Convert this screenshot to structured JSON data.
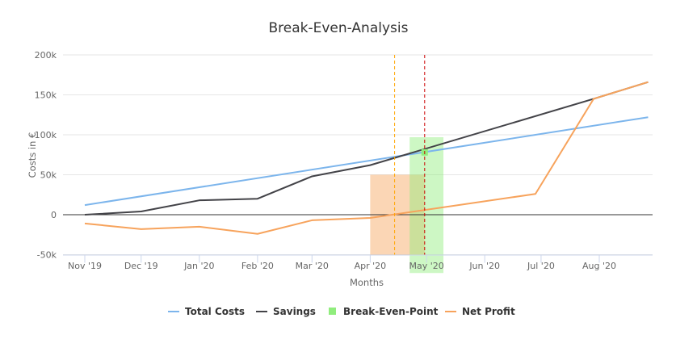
{
  "chart_data": {
    "type": "line",
    "title": "Break-Even-Analysis",
    "xlabel": "Months",
    "ylabel": "Costs in €",
    "x_ticks": [
      "Nov '19",
      "Dec '19",
      "Jan '20",
      "Feb '20",
      "Mar '20",
      "Apr '20",
      "May '20",
      "Jun '20",
      "Jul '20",
      "Aug '20"
    ],
    "x_tick_dates": [
      "2019-11-01",
      "2019-12-01",
      "2020-01-01",
      "2020-02-01",
      "2020-03-01",
      "2020-04-01",
      "2020-05-01",
      "2020-06-01",
      "2020-07-01",
      "2020-08-01"
    ],
    "xlim": [
      "2019-11-01",
      "2020-08-27"
    ],
    "y_ticks": [
      "-50k",
      "0",
      "50k",
      "100k",
      "150k",
      "200k"
    ],
    "y_tick_values": [
      -50000,
      0,
      50000,
      100000,
      150000,
      200000
    ],
    "ylim": [
      -50000,
      200000
    ],
    "grid": true,
    "legend_position": "bottom",
    "series": [
      {
        "name": "Total Costs",
        "color": "#7cb5ec",
        "points": [
          [
            "2019-11-01",
            12000
          ],
          [
            "2020-08-27",
            122000
          ]
        ]
      },
      {
        "name": "Savings",
        "color": "#434348",
        "points": [
          [
            "2019-11-01",
            0
          ],
          [
            "2019-12-01",
            4000
          ],
          [
            "2020-01-01",
            18000
          ],
          [
            "2020-02-01",
            20000
          ],
          [
            "2020-03-01",
            48000
          ],
          [
            "2020-04-01",
            62000
          ],
          [
            "2020-07-29",
            145000
          ],
          [
            "2020-08-27",
            166000
          ]
        ]
      },
      {
        "name": "Net Profit",
        "color": "#f7a35c",
        "points": [
          [
            "2019-11-01",
            -11000
          ],
          [
            "2019-12-01",
            -18000
          ],
          [
            "2020-01-01",
            -15000
          ],
          [
            "2020-02-01",
            -24000
          ],
          [
            "2020-03-01",
            -7000
          ],
          [
            "2020-04-01",
            -4000
          ],
          [
            "2020-06-28",
            26000
          ],
          [
            "2020-07-29",
            145000
          ],
          [
            "2020-08-27",
            166000
          ]
        ]
      }
    ],
    "break_even_point": {
      "name": "Break-Even-Point",
      "color": "#90ed7d",
      "date": "2020-04-30",
      "value": 78000
    },
    "zero_line_color": "#333333",
    "plot_bands": [
      {
        "from": "2020-04-01",
        "to": "2020-04-30",
        "y_from": -50000,
        "y_to": 50000,
        "color": "#f7a35c"
      },
      {
        "from": "2020-04-22",
        "to": "2020-05-10",
        "y_from": -73000,
        "y_to": 97000,
        "color": "#90ed7d"
      }
    ],
    "plot_lines": [
      {
        "date": "2020-04-14",
        "color": "#ffa500"
      },
      {
        "date": "2020-04-30",
        "color": "#cc0000"
      }
    ]
  }
}
